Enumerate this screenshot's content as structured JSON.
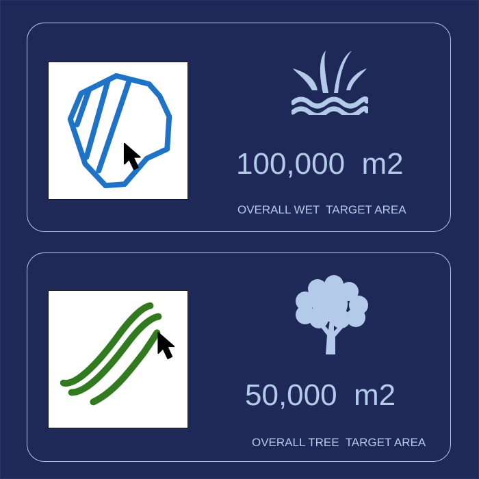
{
  "colors": {
    "background": "#1f2958",
    "card_border": "#b9c8e6",
    "text": "#b3cbe8",
    "icon": "#b3cbe8",
    "wet_stroke": "#1f73c7",
    "tree_stroke": "#317a1f",
    "cursor": "#000000"
  },
  "cards": {
    "wet": {
      "value": "100,000  m2",
      "caption": "OVERALL WET  TARGET AREA",
      "icon": "fountain-water-icon",
      "thumbnail": "wet-area-polygon-drawing"
    },
    "tree": {
      "value": "50,000  m2",
      "caption": "OVERALL TREE  TARGET AREA",
      "icon": "tree-icon",
      "thumbnail": "tree-line-strokes-drawing"
    }
  }
}
